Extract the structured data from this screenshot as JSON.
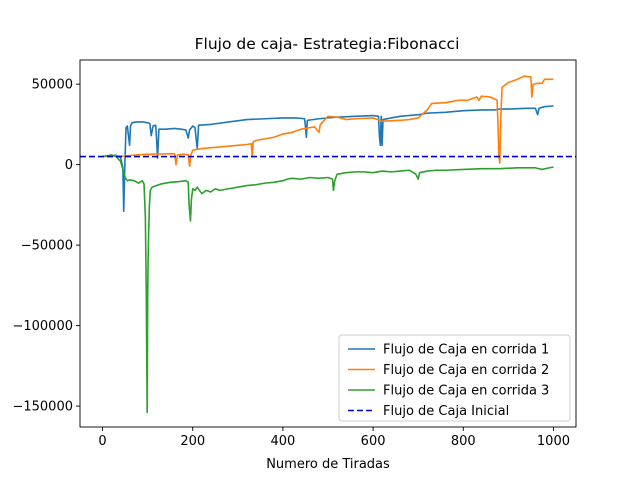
{
  "chart_data": {
    "type": "line",
    "title": "Flujo de caja- Estrategia:Fibonacci",
    "xlabel": "Numero de Tiradas",
    "ylabel": "",
    "xlim": [
      -50,
      1050
    ],
    "ylim": [
      -163000,
      65000
    ],
    "xticks": [
      0,
      200,
      400,
      600,
      800,
      1000
    ],
    "xtick_labels": [
      "0",
      "200",
      "400",
      "600",
      "800",
      "1000"
    ],
    "yticks": [
      50000,
      0,
      -50000,
      -100000,
      -150000
    ],
    "ytick_labels": [
      "50000",
      "0",
      "−50000",
      "−100000",
      "−150000"
    ],
    "grid": false,
    "legend_position": "lower-right",
    "series": [
      {
        "name": "Flujo de Caja en corrida 1",
        "color": "#1f77b4",
        "style": "solid",
        "points": [
          [
            0,
            5000
          ],
          [
            15,
            5500
          ],
          [
            30,
            5800
          ],
          [
            40,
            4500
          ],
          [
            45,
            -2000
          ],
          [
            47,
            -29000
          ],
          [
            49,
            -5000
          ],
          [
            50,
            5000
          ],
          [
            52,
            23000
          ],
          [
            55,
            24000
          ],
          [
            57,
            19000
          ],
          [
            60,
            12000
          ],
          [
            62,
            24000
          ],
          [
            65,
            26000
          ],
          [
            75,
            26500
          ],
          [
            90,
            26500
          ],
          [
            100,
            26000
          ],
          [
            105,
            25500
          ],
          [
            108,
            18000
          ],
          [
            112,
            24000
          ],
          [
            118,
            24500
          ],
          [
            120,
            15000
          ],
          [
            122,
            4000
          ],
          [
            125,
            22000
          ],
          [
            140,
            22000
          ],
          [
            160,
            22500
          ],
          [
            175,
            22000
          ],
          [
            185,
            21500
          ],
          [
            190,
            16500
          ],
          [
            193,
            21500
          ],
          [
            200,
            24000
          ],
          [
            205,
            23000
          ],
          [
            210,
            10000
          ],
          [
            213,
            24500
          ],
          [
            240,
            25000
          ],
          [
            280,
            26500
          ],
          [
            320,
            28000
          ],
          [
            360,
            28500
          ],
          [
            400,
            29000
          ],
          [
            430,
            29000
          ],
          [
            448,
            28500
          ],
          [
            450,
            24000
          ],
          [
            452,
            17000
          ],
          [
            454,
            27500
          ],
          [
            480,
            28500
          ],
          [
            520,
            29500
          ],
          [
            560,
            30000
          ],
          [
            600,
            30500
          ],
          [
            612,
            30000
          ],
          [
            614,
            18000
          ],
          [
            616,
            12000
          ],
          [
            618,
            30000
          ],
          [
            620,
            12000
          ],
          [
            622,
            28000
          ],
          [
            640,
            29000
          ],
          [
            660,
            30000
          ],
          [
            700,
            31000
          ],
          [
            720,
            32000
          ],
          [
            760,
            32500
          ],
          [
            800,
            33500
          ],
          [
            840,
            34000
          ],
          [
            870,
            34000
          ],
          [
            880,
            34500
          ],
          [
            900,
            34500
          ],
          [
            940,
            35000
          ],
          [
            960,
            35000
          ],
          [
            965,
            31000
          ],
          [
            968,
            35000
          ],
          [
            980,
            36000
          ],
          [
            1000,
            36500
          ]
        ]
      },
      {
        "name": "Flujo de Caja en corrida 2",
        "color": "#ff7f0e",
        "style": "solid",
        "points": [
          [
            0,
            5000
          ],
          [
            20,
            5500
          ],
          [
            40,
            5200
          ],
          [
            60,
            5600
          ],
          [
            80,
            6200
          ],
          [
            100,
            6400
          ],
          [
            110,
            6500
          ],
          [
            130,
            6600
          ],
          [
            150,
            6800
          ],
          [
            160,
            6700
          ],
          [
            163,
            0
          ],
          [
            166,
            6000
          ],
          [
            180,
            6500
          ],
          [
            190,
            6200
          ],
          [
            193,
            -1000
          ],
          [
            196,
            6000
          ],
          [
            200,
            9000
          ],
          [
            220,
            10000
          ],
          [
            260,
            11000
          ],
          [
            300,
            12000
          ],
          [
            320,
            12500
          ],
          [
            330,
            13000
          ],
          [
            332,
            5000
          ],
          [
            334,
            14000
          ],
          [
            340,
            15000
          ],
          [
            380,
            17000
          ],
          [
            400,
            19000
          ],
          [
            420,
            20000
          ],
          [
            440,
            22000
          ],
          [
            460,
            23000
          ],
          [
            470,
            23500
          ],
          [
            480,
            20000
          ],
          [
            483,
            25000
          ],
          [
            500,
            30000
          ],
          [
            520,
            29500
          ],
          [
            540,
            28000
          ],
          [
            560,
            28500
          ],
          [
            600,
            29000
          ],
          [
            620,
            27000
          ],
          [
            660,
            27500
          ],
          [
            680,
            28000
          ],
          [
            700,
            29000
          ],
          [
            720,
            34000
          ],
          [
            730,
            38000
          ],
          [
            760,
            38500
          ],
          [
            790,
            40000
          ],
          [
            810,
            40000
          ],
          [
            830,
            42000
          ],
          [
            835,
            40000
          ],
          [
            840,
            42500
          ],
          [
            860,
            42000
          ],
          [
            875,
            40000
          ],
          [
            877,
            25000
          ],
          [
            879,
            5000
          ],
          [
            881,
            1000
          ],
          [
            883,
            28000
          ],
          [
            886,
            48000
          ],
          [
            900,
            51000
          ],
          [
            920,
            53000
          ],
          [
            935,
            55000
          ],
          [
            950,
            54500
          ],
          [
            952,
            42000
          ],
          [
            955,
            50000
          ],
          [
            965,
            50500
          ],
          [
            975,
            50500
          ],
          [
            980,
            53000
          ],
          [
            1000,
            53000
          ]
        ]
      },
      {
        "name": "Flujo de Caja en corrida 3",
        "color": "#2ca02c",
        "style": "solid",
        "points": [
          [
            0,
            5000
          ],
          [
            10,
            5500
          ],
          [
            20,
            6000
          ],
          [
            30,
            5000
          ],
          [
            40,
            2000
          ],
          [
            45,
            -3000
          ],
          [
            50,
            -8000
          ],
          [
            55,
            -10000
          ],
          [
            60,
            -9500
          ],
          [
            70,
            -10000
          ],
          [
            80,
            -11500
          ],
          [
            88,
            -10000
          ],
          [
            92,
            -12000
          ],
          [
            95,
            -33000
          ],
          [
            97,
            -80000
          ],
          [
            99,
            -154000
          ],
          [
            100,
            -85000
          ],
          [
            101,
            -60000
          ],
          [
            102,
            -45000
          ],
          [
            104,
            -25000
          ],
          [
            106,
            -16000
          ],
          [
            110,
            -14000
          ],
          [
            120,
            -13000
          ],
          [
            130,
            -12000
          ],
          [
            150,
            -11000
          ],
          [
            170,
            -10500
          ],
          [
            185,
            -10000
          ],
          [
            190,
            -11000
          ],
          [
            192,
            -25000
          ],
          [
            195,
            -35000
          ],
          [
            197,
            -22000
          ],
          [
            200,
            -15000
          ],
          [
            205,
            -16000
          ],
          [
            210,
            -14000
          ],
          [
            220,
            -18000
          ],
          [
            230,
            -16000
          ],
          [
            240,
            -17000
          ],
          [
            250,
            -15000
          ],
          [
            260,
            -16000
          ],
          [
            280,
            -15000
          ],
          [
            300,
            -14000
          ],
          [
            320,
            -13000
          ],
          [
            340,
            -12500
          ],
          [
            360,
            -11500
          ],
          [
            380,
            -11000
          ],
          [
            400,
            -10000
          ],
          [
            410,
            -9000
          ],
          [
            420,
            -8500
          ],
          [
            440,
            -9000
          ],
          [
            460,
            -8000
          ],
          [
            480,
            -8500
          ],
          [
            500,
            -8000
          ],
          [
            510,
            -9000
          ],
          [
            512,
            -16000
          ],
          [
            515,
            -10000
          ],
          [
            520,
            -6000
          ],
          [
            540,
            -5000
          ],
          [
            560,
            -4500
          ],
          [
            580,
            -4500
          ],
          [
            600,
            -5000
          ],
          [
            620,
            -4000
          ],
          [
            640,
            -4500
          ],
          [
            660,
            -4000
          ],
          [
            680,
            -3500
          ],
          [
            690,
            -5000
          ],
          [
            695,
            -6000
          ],
          [
            700,
            -9000
          ],
          [
            703,
            -5000
          ],
          [
            720,
            -4000
          ],
          [
            740,
            -3500
          ],
          [
            760,
            -3500
          ],
          [
            800,
            -3000
          ],
          [
            840,
            -2500
          ],
          [
            880,
            -2500
          ],
          [
            920,
            -2000
          ],
          [
            960,
            -2000
          ],
          [
            975,
            -3000
          ],
          [
            990,
            -2000
          ],
          [
            1000,
            -1500
          ]
        ]
      },
      {
        "name": "Flujo de Caja Inicial",
        "color": "#0000cc",
        "style": "dashed",
        "points": [
          [
            -50,
            5000
          ],
          [
            1050,
            5000
          ]
        ]
      }
    ]
  }
}
